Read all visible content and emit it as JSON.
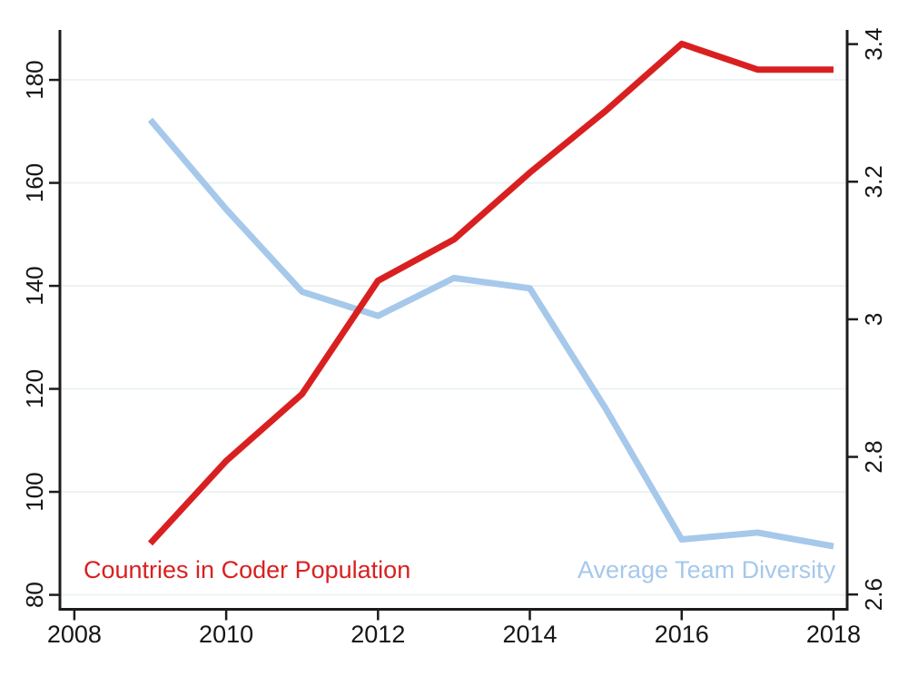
{
  "chart_data": {
    "type": "line",
    "title": "",
    "xlabel": "",
    "ylabel_left": "",
    "ylabel_right": "",
    "x": [
      2009,
      2010,
      2011,
      2012,
      2013,
      2014,
      2015,
      2016,
      2017,
      2018
    ],
    "series": [
      {
        "name": "Countries in Coder Population",
        "axis": "left",
        "color": "#d92020",
        "stroke_width": 7,
        "values": [
          90,
          106,
          119,
          141,
          149,
          162,
          174,
          187,
          182,
          182
        ]
      },
      {
        "name": "Average Team Diversity",
        "axis": "right",
        "color": "#a6c8ea",
        "stroke_width": 7,
        "values": [
          3.29,
          3.16,
          3.04,
          3.005,
          3.06,
          3.045,
          2.87,
          2.68,
          2.69,
          2.67
        ]
      }
    ],
    "x_axis": {
      "tick_labels": [
        "2008",
        "2010",
        "2012",
        "2014",
        "2016",
        "2018"
      ],
      "tick_values": [
        2008,
        2010,
        2012,
        2014,
        2016,
        2018
      ],
      "range": [
        2007.81,
        2018.18
      ]
    },
    "left_axis": {
      "tick_labels": [
        "80",
        "100",
        "120",
        "140",
        "160",
        "180"
      ],
      "tick_values": [
        80,
        100,
        120,
        140,
        160,
        180
      ],
      "range": [
        77.0,
        189.7
      ],
      "tick_label_rotation": -90
    },
    "right_axis": {
      "tick_labels": [
        "2.6",
        "2.8",
        "3",
        "3.2",
        "3.4"
      ],
      "tick_values": [
        2.6,
        2.8,
        3.0,
        3.2,
        3.4
      ],
      "range": [
        2.577,
        3.4206
      ],
      "tick_label_rotation": -90
    },
    "grid": {
      "show": true,
      "aligned_to": "left_axis_ticks",
      "color": "#e9f1f0"
    },
    "axis_color": "#1c1c1c",
    "background_color": "#ffffff",
    "legend_position": "none (in-plot colored text annotations)"
  }
}
